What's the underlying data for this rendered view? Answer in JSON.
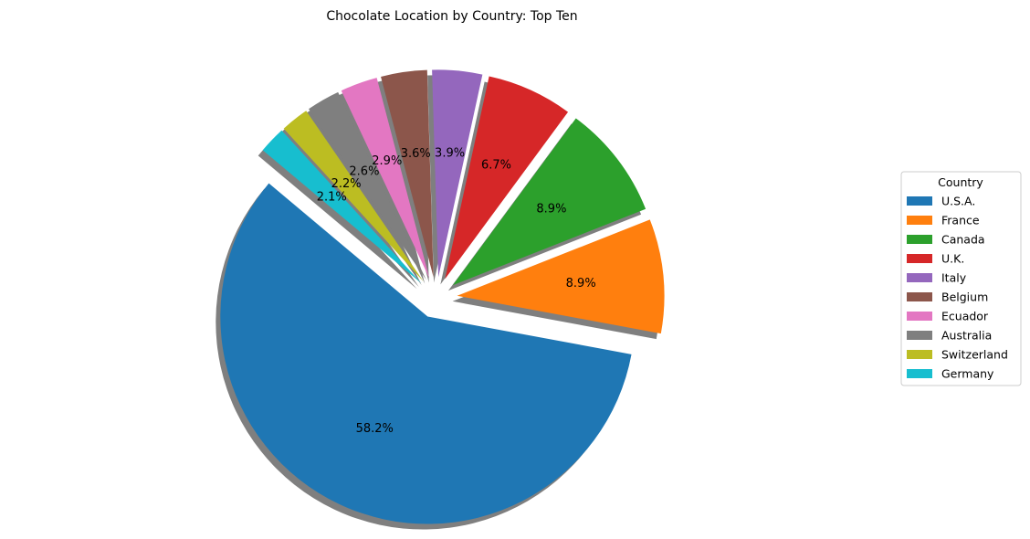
{
  "chart_data": {
    "type": "pie",
    "title": "Chocolate Location by Country: Top Ten",
    "legend_title": "Country",
    "legend_position": "right",
    "shadow": true,
    "start_angle_deg": 140,
    "direction": "counterclockwise",
    "categories": [
      "U.S.A.",
      "France",
      "Canada",
      "U.K.",
      "Italy",
      "Belgium",
      "Ecuador",
      "Australia",
      "Switzerland",
      "Germany"
    ],
    "values": [
      58.2,
      8.9,
      8.9,
      6.7,
      3.9,
      3.6,
      2.9,
      2.6,
      2.2,
      2.1
    ],
    "value_labels": [
      "58.2%",
      "8.9%",
      "8.9%",
      "6.7%",
      "3.9%",
      "3.6%",
      "2.9%",
      "2.6%",
      "2.2%",
      "2.1%"
    ],
    "explode": [
      0.1,
      0.1,
      0.1,
      0.1,
      0.1,
      0.1,
      0.1,
      0.1,
      0.1,
      0.1
    ],
    "colors": [
      "#1f77b4",
      "#ff7f0e",
      "#2ca02c",
      "#d62728",
      "#9467bd",
      "#8c564b",
      "#e377c2",
      "#7f7f7f",
      "#bcbd22",
      "#17becf"
    ]
  }
}
